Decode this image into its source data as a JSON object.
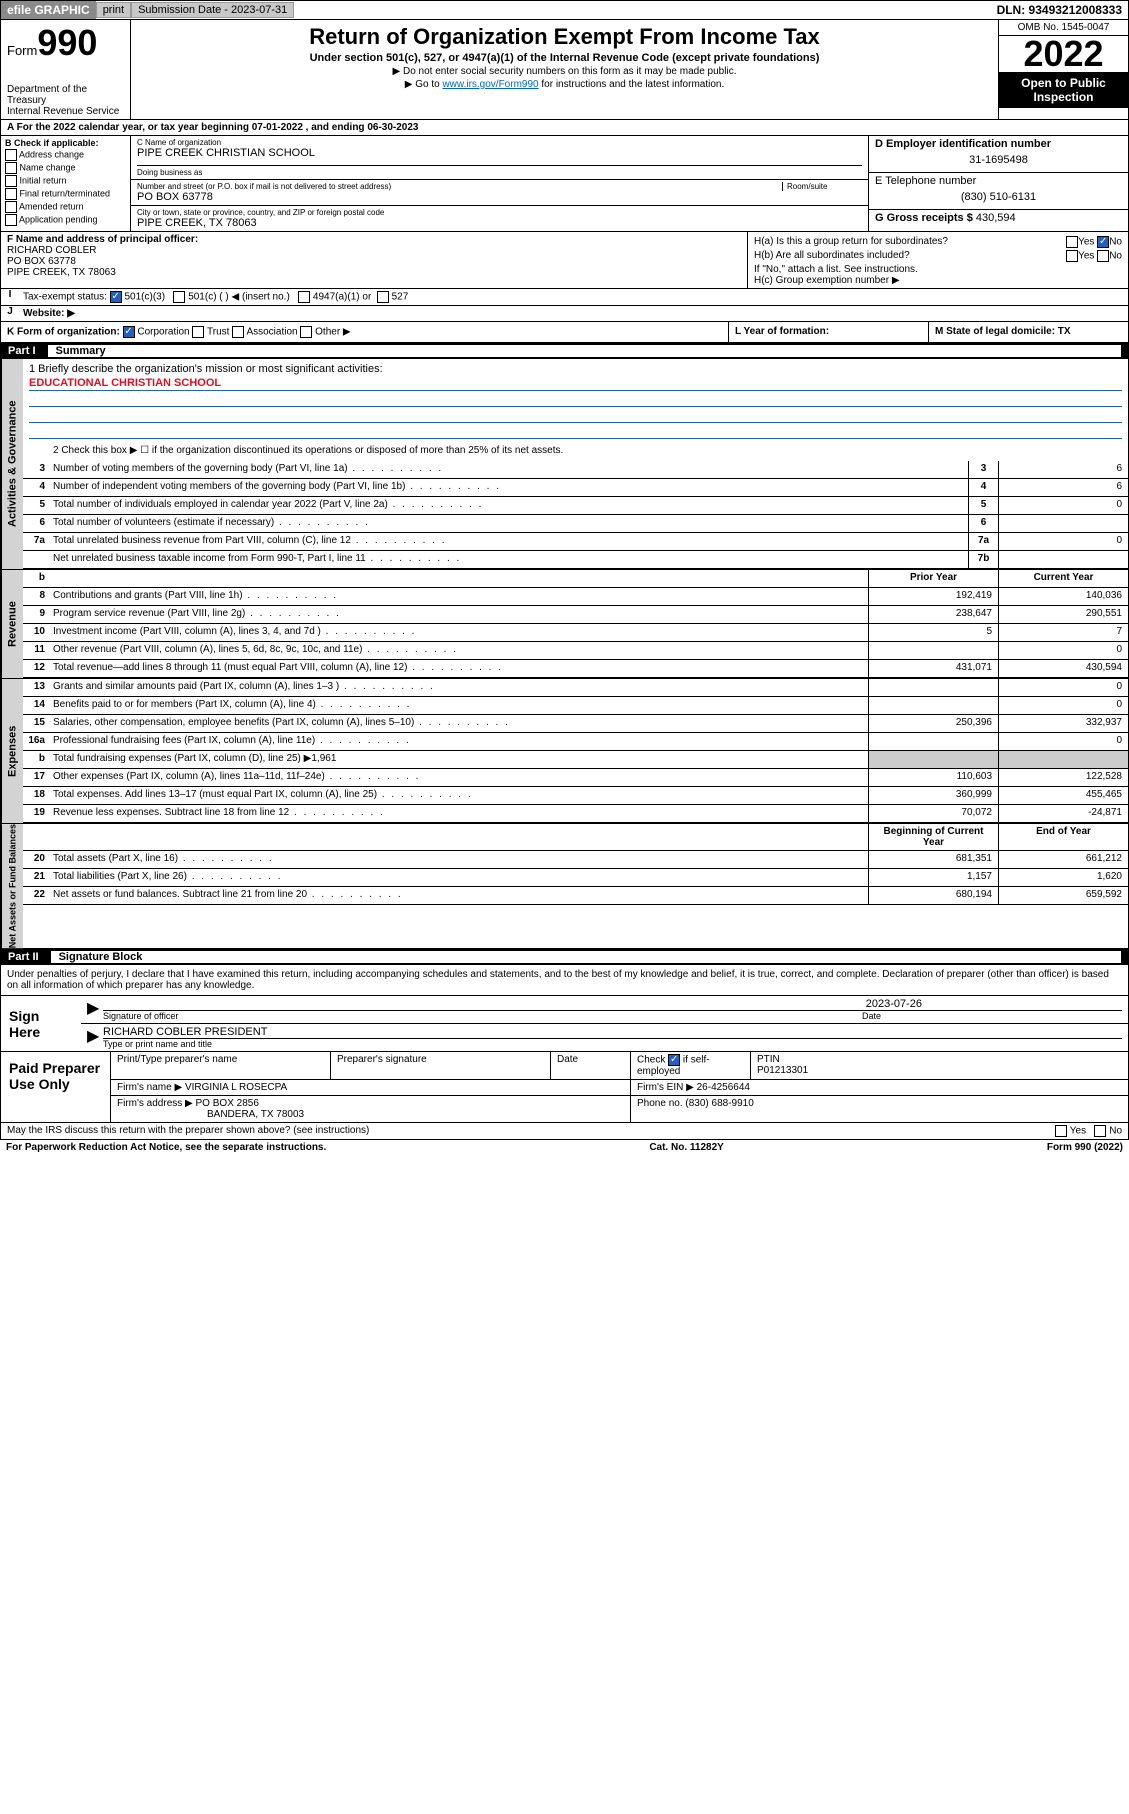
{
  "topbar": {
    "efile": "efile GRAPHIC",
    "print": "print",
    "submission_label": "Submission Date - 2023-07-31",
    "dln": "DLN: 93493212008333"
  },
  "header": {
    "form_label": "Form",
    "form_num": "990",
    "dept": "Department of the Treasury",
    "irs": "Internal Revenue Service",
    "title": "Return of Organization Exempt From Income Tax",
    "sub": "Under section 501(c), 527, or 4947(a)(1) of the Internal Revenue Code (except private foundations)",
    "note1": "▶ Do not enter social security numbers on this form as it may be made public.",
    "note2_pre": "▶ Go to ",
    "note2_link": "www.irs.gov/Form990",
    "note2_post": " for instructions and the latest information.",
    "omb": "OMB No. 1545-0047",
    "year": "2022",
    "open": "Open to Public Inspection"
  },
  "row_a": "A For the 2022 calendar year, or tax year beginning 07-01-2022   , and ending 06-30-2023",
  "col_b": {
    "title": "B Check if applicable:",
    "opts": [
      "Address change",
      "Name change",
      "Initial return",
      "Final return/terminated",
      "Amended return",
      "Application pending"
    ]
  },
  "col_c": {
    "name_lbl": "C Name of organization",
    "name": "PIPE CREEK CHRISTIAN SCHOOL",
    "dba_lbl": "Doing business as",
    "dba": "",
    "addr_lbl": "Number and street (or P.O. box if mail is not delivered to street address)",
    "room_lbl": "Room/suite",
    "addr": "PO BOX 63778",
    "city_lbl": "City or town, state or province, country, and ZIP or foreign postal code",
    "city": "PIPE CREEK, TX  78063"
  },
  "col_d": {
    "lbl": "D Employer identification number",
    "val": "31-1695498"
  },
  "col_e": {
    "lbl": "E Telephone number",
    "val": "(830) 510-6131"
  },
  "col_g": {
    "lbl": "G Gross receipts $",
    "val": "430,594"
  },
  "col_f": {
    "lbl": "F Name and address of principal officer:",
    "name": "RICHARD COBLER",
    "addr1": "PO BOX 63778",
    "addr2": "PIPE CREEK, TX  78063"
  },
  "col_h": {
    "a": "H(a)  Is this a group return for subordinates?",
    "a_no": "No",
    "b": "H(b)  Are all subordinates included?",
    "b_note": "If \"No,\" attach a list. See instructions.",
    "c": "H(c)  Group exemption number ▶"
  },
  "row_i": {
    "lbl": "Tax-exempt status:",
    "opt1": "501(c)(3)",
    "opt2": "501(c) (  ) ◀ (insert no.)",
    "opt3": "4947(a)(1) or",
    "opt4": "527"
  },
  "row_j": "Website: ▶",
  "row_k": "K Form of organization:",
  "row_k_opts": [
    "Corporation",
    "Trust",
    "Association",
    "Other ▶"
  ],
  "row_l": "L Year of formation:",
  "row_m": "M State of legal domicile: TX",
  "part1": {
    "num": "Part I",
    "title": "Summary"
  },
  "mission_lbl": "1  Briefly describe the organization's mission or most significant activities:",
  "mission": "EDUCATIONAL CHRISTIAN SCHOOL",
  "line2": "2   Check this box ▶ ☐  if the organization discontinued its operations or disposed of more than 25% of its net assets.",
  "lines_ag": [
    {
      "n": "3",
      "d": "Number of voting members of the governing body (Part VI, line 1a)",
      "box": "3",
      "v": "6"
    },
    {
      "n": "4",
      "d": "Number of independent voting members of the governing body (Part VI, line 1b)",
      "box": "4",
      "v": "6"
    },
    {
      "n": "5",
      "d": "Total number of individuals employed in calendar year 2022 (Part V, line 2a)",
      "box": "5",
      "v": "0"
    },
    {
      "n": "6",
      "d": "Total number of volunteers (estimate if necessary)",
      "box": "6",
      "v": ""
    },
    {
      "n": "7a",
      "d": "Total unrelated business revenue from Part VIII, column (C), line 12",
      "box": "7a",
      "v": "0"
    },
    {
      "n": "",
      "d": "Net unrelated business taxable income from Form 990-T, Part I, line 11",
      "box": "7b",
      "v": ""
    }
  ],
  "col_hdrs": {
    "prior": "Prior Year",
    "current": "Current Year"
  },
  "rev": [
    {
      "n": "8",
      "d": "Contributions and grants (Part VIII, line 1h)",
      "p": "192,419",
      "c": "140,036"
    },
    {
      "n": "9",
      "d": "Program service revenue (Part VIII, line 2g)",
      "p": "238,647",
      "c": "290,551"
    },
    {
      "n": "10",
      "d": "Investment income (Part VIII, column (A), lines 3, 4, and 7d )",
      "p": "5",
      "c": "7"
    },
    {
      "n": "11",
      "d": "Other revenue (Part VIII, column (A), lines 5, 6d, 8c, 9c, 10c, and 11e)",
      "p": "",
      "c": "0"
    },
    {
      "n": "12",
      "d": "Total revenue—add lines 8 through 11 (must equal Part VIII, column (A), line 12)",
      "p": "431,071",
      "c": "430,594"
    }
  ],
  "exp": [
    {
      "n": "13",
      "d": "Grants and similar amounts paid (Part IX, column (A), lines 1–3 )",
      "p": "",
      "c": "0"
    },
    {
      "n": "14",
      "d": "Benefits paid to or for members (Part IX, column (A), line 4)",
      "p": "",
      "c": "0"
    },
    {
      "n": "15",
      "d": "Salaries, other compensation, employee benefits (Part IX, column (A), lines 5–10)",
      "p": "250,396",
      "c": "332,937"
    },
    {
      "n": "16a",
      "d": "Professional fundraising fees (Part IX, column (A), line 11e)",
      "p": "",
      "c": "0"
    },
    {
      "n": "b",
      "d": "Total fundraising expenses (Part IX, column (D), line 25) ▶1,961",
      "p": "",
      "c": "",
      "noval": true
    },
    {
      "n": "17",
      "d": "Other expenses (Part IX, column (A), lines 11a–11d, 11f–24e)",
      "p": "110,603",
      "c": "122,528"
    },
    {
      "n": "18",
      "d": "Total expenses. Add lines 13–17 (must equal Part IX, column (A), line 25)",
      "p": "360,999",
      "c": "455,465"
    },
    {
      "n": "19",
      "d": "Revenue less expenses. Subtract line 18 from line 12",
      "p": "70,072",
      "c": "-24,871"
    }
  ],
  "na_hdrs": {
    "begin": "Beginning of Current Year",
    "end": "End of Year"
  },
  "na": [
    {
      "n": "20",
      "d": "Total assets (Part X, line 16)",
      "p": "681,351",
      "c": "661,212"
    },
    {
      "n": "21",
      "d": "Total liabilities (Part X, line 26)",
      "p": "1,157",
      "c": "1,620"
    },
    {
      "n": "22",
      "d": "Net assets or fund balances. Subtract line 21 from line 20",
      "p": "680,194",
      "c": "659,592"
    }
  ],
  "part2": {
    "num": "Part II",
    "title": "Signature Block"
  },
  "sig_decl": "Under penalties of perjury, I declare that I have examined this return, including accompanying schedules and statements, and to the best of my knowledge and belief, it is true, correct, and complete. Declaration of preparer (other than officer) is based on all information of which preparer has any knowledge.",
  "sign_here": "Sign Here",
  "sig_officer_lbl": "Signature of officer",
  "sig_date": "2023-07-26",
  "sig_date_lbl": "Date",
  "sig_name": "RICHARD COBLER  PRESIDENT",
  "sig_name_lbl": "Type or print name and title",
  "paid_prep": "Paid Preparer Use Only",
  "paid": {
    "col1": "Print/Type preparer's name",
    "col2": "Preparer's signature",
    "col3": "Date",
    "col4_lbl": "Check",
    "col4_txt": "if self-employed",
    "ptin_lbl": "PTIN",
    "ptin": "P01213301",
    "firm_name_lbl": "Firm's name   ▶",
    "firm_name": "VIRGINIA L ROSECPA",
    "firm_ein_lbl": "Firm's EIN ▶",
    "firm_ein": "26-4256644",
    "firm_addr_lbl": "Firm's address ▶",
    "firm_addr1": "PO BOX 2856",
    "firm_addr2": "BANDERA, TX  78003",
    "phone_lbl": "Phone no.",
    "phone": "(830) 688-9910"
  },
  "may_irs": "May the IRS discuss this return with the preparer shown above? (see instructions)",
  "footer": {
    "left": "For Paperwork Reduction Act Notice, see the separate instructions.",
    "mid": "Cat. No. 11282Y",
    "right": "Form 990 (2022)"
  },
  "sidetabs": {
    "ag": "Activities & Governance",
    "rev": "Revenue",
    "exp": "Expenses",
    "na": "Net Assets or Fund Balances"
  }
}
